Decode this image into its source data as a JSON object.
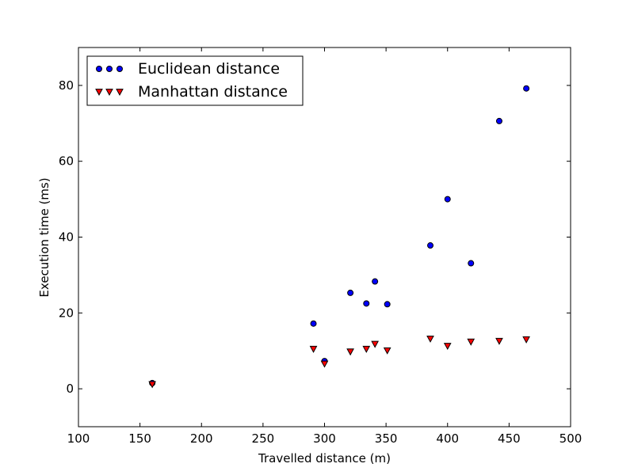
{
  "chart_data": {
    "type": "scatter",
    "title": "",
    "xlabel": "Travelled distance (m)",
    "ylabel": "Execution time (ms)",
    "xlim": [
      100,
      500
    ],
    "ylim": [
      -10,
      90
    ],
    "xticks": [
      100,
      150,
      200,
      250,
      300,
      350,
      400,
      450,
      500
    ],
    "yticks": [
      0,
      20,
      40,
      60,
      80
    ],
    "grid": false,
    "legend_position": "top-left",
    "series": [
      {
        "name": "Euclidean distance",
        "marker": "circle",
        "color": "#0000ff",
        "points": [
          [
            160,
            1.5
          ],
          [
            291,
            17.2
          ],
          [
            300,
            7.3
          ],
          [
            321,
            25.3
          ],
          [
            334,
            22.5
          ],
          [
            341,
            28.3
          ],
          [
            351,
            22.3
          ],
          [
            386,
            37.8
          ],
          [
            400,
            50.0
          ],
          [
            419,
            33.1
          ],
          [
            442,
            70.6
          ],
          [
            464,
            79.2
          ]
        ]
      },
      {
        "name": "Manhattan distance",
        "marker": "triangle-down",
        "color": "#ff0000",
        "points": [
          [
            160,
            1.2
          ],
          [
            291,
            10.5
          ],
          [
            300,
            6.6
          ],
          [
            321,
            9.8
          ],
          [
            334,
            10.5
          ],
          [
            341,
            11.8
          ],
          [
            351,
            10.1
          ],
          [
            386,
            13.2
          ],
          [
            400,
            11.3
          ],
          [
            419,
            12.4
          ],
          [
            442,
            12.6
          ],
          [
            464,
            13.0
          ]
        ]
      }
    ]
  }
}
